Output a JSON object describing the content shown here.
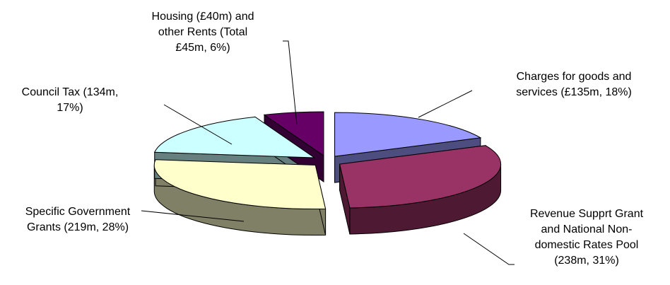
{
  "chart_data": {
    "type": "pie",
    "style": "3d-exploded",
    "slices": [
      {
        "label": "Charges for goods and services (£135m, 18%)",
        "lines": [
          "Charges for goods and",
          "services (£135m, 18%)"
        ],
        "percent": 18,
        "amount": "£135m",
        "color": "#9999FF",
        "side_color": "#4D4D80"
      },
      {
        "label": "Revenue Supprt Grant and National Non-domestic Rates Pool (238m, 31%)",
        "lines": [
          "Revenue Supprt Grant",
          "and National Non-",
          "domestic Rates Pool",
          "(238m, 31%)"
        ],
        "percent": 31,
        "amount": "238m",
        "color": "#993366",
        "side_color": "#4D1933"
      },
      {
        "label": "Specific Government Grants (219m, 28%)",
        "lines": [
          "Specific Government",
          "Grants  (219m, 28%)"
        ],
        "percent": 28,
        "amount": "219m",
        "color": "#FFFFCC",
        "side_color": "#808066"
      },
      {
        "label": "Council Tax (134m, 17%)",
        "lines": [
          "Council Tax  (134m,",
          "17%)"
        ],
        "percent": 17,
        "amount": "134m",
        "color": "#CCFFFF",
        "side_color": "#668080"
      },
      {
        "label": "Housing (£40m) and other Rents (Total £45m, 6%)",
        "lines": [
          "Housing (£40m) and",
          "other Rents (Total",
          "£45m, 6%)"
        ],
        "percent": 6,
        "amount": "£45m",
        "color": "#660066",
        "side_color": "#330033"
      }
    ]
  }
}
